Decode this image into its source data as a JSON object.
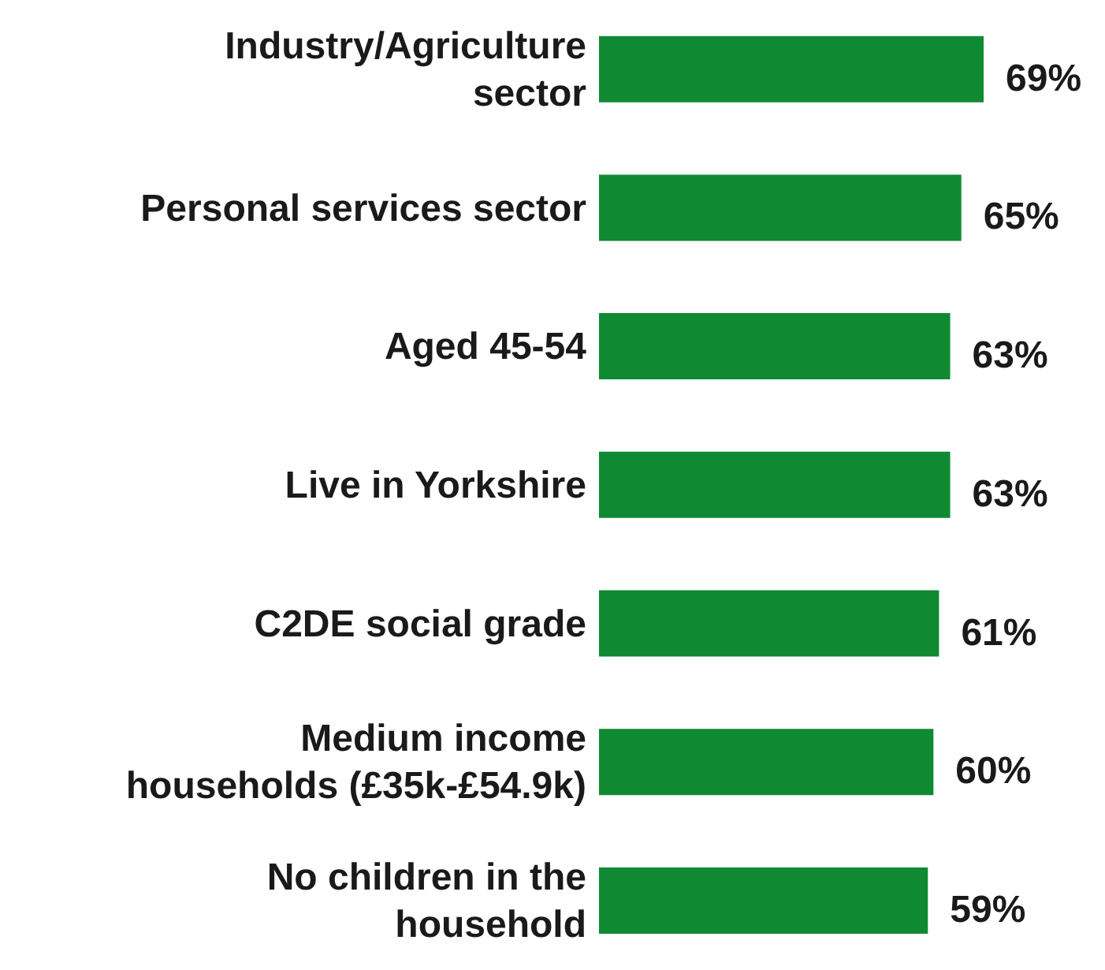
{
  "chart_data": {
    "type": "bar",
    "orientation": "horizontal",
    "tick_labels": "y",
    "categories": [
      "Industry/Agriculture\nsector",
      "Personal services sector",
      "Aged 45-54",
      "Live in Yorkshire",
      "C2DE social grade",
      "Medium income\nhouseholds (£35k-£54.9k)",
      "No children in the\nhousehold"
    ],
    "values": [
      69,
      65,
      63,
      63,
      61,
      60,
      59
    ],
    "value_labels": [
      "69%",
      "65%",
      "63%",
      "63%",
      "61%",
      "60%",
      "59%"
    ],
    "color": "#0f8a32"
  }
}
